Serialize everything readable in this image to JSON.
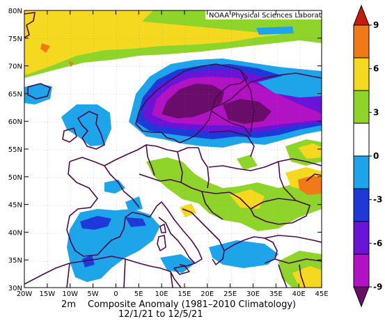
{
  "credit": "NOAA Physical Sciences Laboratory",
  "title": {
    "line1_var": "2m",
    "line1_rest": "Composite Anomaly (1981–2010 Climatology)",
    "line2": "12/1/21   to 12/5/21"
  },
  "axes": {
    "lat_labels": [
      "80N",
      "75N",
      "70N",
      "65N",
      "60N",
      "55N",
      "50N",
      "45N",
      "40N",
      "35N",
      "30N"
    ],
    "lon_labels": [
      "20W",
      "15W",
      "10W",
      "5W",
      "0",
      "5E",
      "10E",
      "15E",
      "20E",
      "25E",
      "30E",
      "35E",
      "40E",
      "45E"
    ]
  },
  "colorbar": {
    "labels": [
      "9",
      "6",
      "3",
      "0",
      "-3",
      "-6",
      "-9"
    ],
    "colors": [
      "#c41c08",
      "#f07a18",
      "#f5d820",
      "#8fd42a",
      "#ffffff",
      "#1ea4e8",
      "#1f38d8",
      "#6a14d8",
      "#b012c4",
      "#6a0c6a"
    ]
  }
}
